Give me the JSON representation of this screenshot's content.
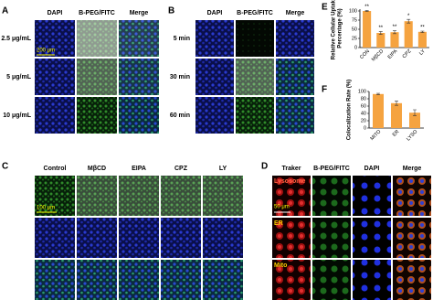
{
  "panels": {
    "a": {
      "label": "A",
      "columns": [
        "DAPI",
        "B-PEG/FITC",
        "Merge"
      ],
      "rows": [
        "2.5 μg/mL",
        "5 μg/mL",
        "10 μg/mL"
      ],
      "scale_bar": "200 μm"
    },
    "b": {
      "label": "B",
      "columns": [
        "DAPI",
        "B-PEG/FITC",
        "Merge"
      ],
      "rows": [
        "5 min",
        "30 min",
        "60 min"
      ]
    },
    "c": {
      "label": "C",
      "columns": [
        "Control",
        "MβCD",
        "EIPA",
        "CPZ",
        "LY"
      ],
      "scale_bar": "100 μm"
    },
    "d": {
      "label": "D",
      "columns": [
        "Traker",
        "B-PEG/FITC",
        "DAPI",
        "Merge"
      ],
      "rows": [
        "Lysosome",
        "ER",
        "Mito"
      ],
      "scale_bar": "50 μm"
    }
  },
  "chart_data": [
    {
      "type": "bar",
      "label": "E",
      "ylabel": [
        "Relative Cellular Uptake",
        "Percentage (%)"
      ],
      "categories": [
        "CON",
        "MβCD",
        "EIPA",
        "CPZ",
        "LY"
      ],
      "values": [
        100,
        40,
        42,
        72,
        43
      ],
      "errors": [
        1,
        4,
        4,
        5,
        2
      ],
      "annotations": [
        "**",
        "**",
        "**",
        "*",
        "**"
      ],
      "color": "#f5a340",
      "ylim": [
        0,
        105
      ],
      "yticks": [
        0,
        25,
        50,
        75,
        100
      ]
    },
    {
      "type": "bar",
      "label": "F",
      "ylabel": [
        "Colocalization Rate (%)"
      ],
      "categories": [
        "MITO",
        "ER",
        "LYSO"
      ],
      "values": [
        93,
        68,
        42
      ],
      "errors": [
        2,
        6,
        8
      ],
      "color": "#f5a340",
      "ylim": [
        0,
        100
      ],
      "yticks": [
        0,
        20,
        40,
        60,
        80,
        100
      ]
    }
  ]
}
